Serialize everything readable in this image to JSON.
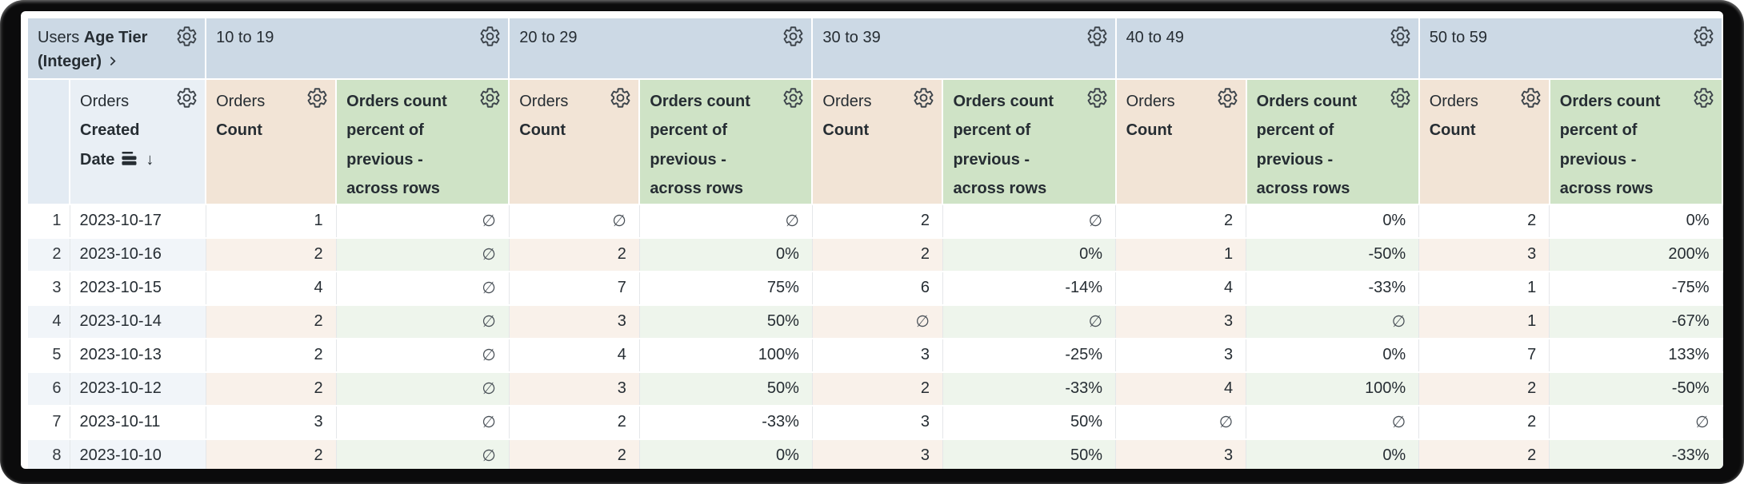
{
  "colors": {
    "pivot_header": "#ccd9e5",
    "row_header": "#e9eff5",
    "count_header": "#f2e4d6",
    "percent_header": "#cfe3c6",
    "stripe_blue": "#f1f5f9",
    "stripe_tan": "#f9f1ea",
    "stripe_green": "#eef5ec",
    "text": "#262d33",
    "frame": "#0b0b0c"
  },
  "header": {
    "corner": {
      "prefix": "Users",
      "bold": "Age Tier (Integer)"
    },
    "row_field": {
      "prefix": "Orders",
      "bold": "Created Date",
      "sort_arrow": "↓"
    },
    "pivot_values": [
      "10 to 19",
      "20 to 29",
      "30 to 39",
      "40 to 49",
      "50 to 59"
    ],
    "measures": {
      "count": {
        "prefix": "Orders",
        "bold": "Count"
      },
      "percent": {
        "label": "Orders count percent of previous - across rows"
      }
    }
  },
  "table": {
    "null_symbol": "∅",
    "rows": [
      {
        "index": "1",
        "date": "2023-10-17",
        "values": [
          [
            "1",
            "∅"
          ],
          [
            "∅",
            "∅"
          ],
          [
            "2",
            "∅"
          ],
          [
            "2",
            "0%"
          ],
          [
            "2",
            "0%"
          ]
        ]
      },
      {
        "index": "2",
        "date": "2023-10-16",
        "values": [
          [
            "2",
            "∅"
          ],
          [
            "2",
            "0%"
          ],
          [
            "2",
            "0%"
          ],
          [
            "1",
            "-50%"
          ],
          [
            "3",
            "200%"
          ]
        ]
      },
      {
        "index": "3",
        "date": "2023-10-15",
        "values": [
          [
            "4",
            "∅"
          ],
          [
            "7",
            "75%"
          ],
          [
            "6",
            "-14%"
          ],
          [
            "4",
            "-33%"
          ],
          [
            "1",
            "-75%"
          ]
        ]
      },
      {
        "index": "4",
        "date": "2023-10-14",
        "values": [
          [
            "2",
            "∅"
          ],
          [
            "3",
            "50%"
          ],
          [
            "∅",
            "∅"
          ],
          [
            "3",
            "∅"
          ],
          [
            "1",
            "-67%"
          ]
        ]
      },
      {
        "index": "5",
        "date": "2023-10-13",
        "values": [
          [
            "2",
            "∅"
          ],
          [
            "4",
            "100%"
          ],
          [
            "3",
            "-25%"
          ],
          [
            "3",
            "0%"
          ],
          [
            "7",
            "133%"
          ]
        ]
      },
      {
        "index": "6",
        "date": "2023-10-12",
        "values": [
          [
            "2",
            "∅"
          ],
          [
            "3",
            "50%"
          ],
          [
            "2",
            "-33%"
          ],
          [
            "4",
            "100%"
          ],
          [
            "2",
            "-50%"
          ]
        ]
      },
      {
        "index": "7",
        "date": "2023-10-11",
        "values": [
          [
            "3",
            "∅"
          ],
          [
            "2",
            "-33%"
          ],
          [
            "3",
            "50%"
          ],
          [
            "∅",
            "∅"
          ],
          [
            "2",
            "∅"
          ]
        ]
      },
      {
        "index": "8",
        "date": "2023-10-10",
        "values": [
          [
            "2",
            "∅"
          ],
          [
            "2",
            "0%"
          ],
          [
            "3",
            "50%"
          ],
          [
            "3",
            "0%"
          ],
          [
            "2",
            "-33%"
          ]
        ]
      }
    ]
  }
}
